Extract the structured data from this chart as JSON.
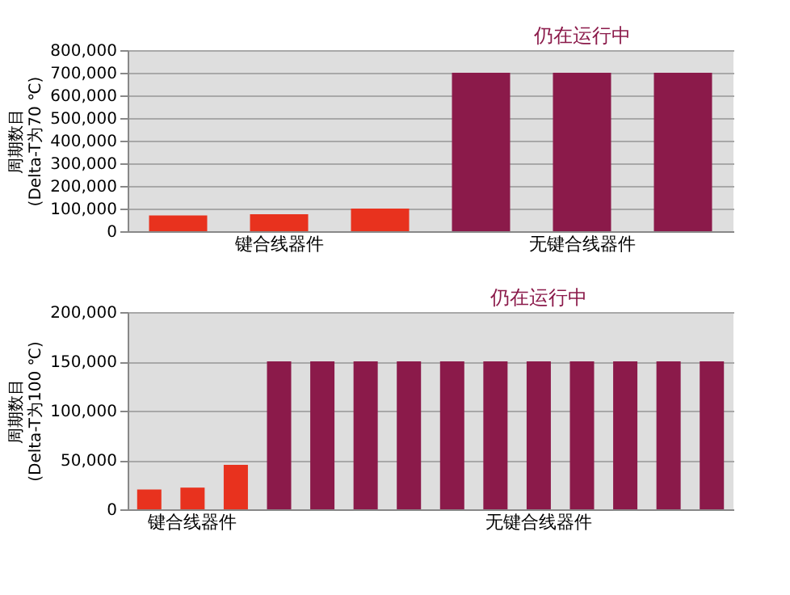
{
  "chart_data": [
    {
      "type": "bar",
      "ylabel": "周期数目\n(Delta-T为70 ℃)",
      "categories": [
        null,
        "键合线器件",
        null,
        null,
        "无键合线器件",
        null
      ],
      "values": [
        70000,
        75000,
        100000,
        700000,
        700000,
        700000
      ],
      "colors": [
        "#e8321e",
        "#e8321e",
        "#e8321e",
        "#8b1a4a",
        "#8b1a4a",
        "#8b1a4a"
      ],
      "ylim": [
        0,
        800000
      ],
      "yticks": [
        0,
        {
          "value": 100000,
          "label": "100,000"
        },
        {
          "value": 200000,
          "label": "200,000"
        },
        {
          "value": 300000,
          "label": "300,000"
        },
        {
          "value": 400000,
          "label": "400,000"
        },
        {
          "value": 500000,
          "label": "500,000"
        },
        {
          "value": 600000,
          "label": "600,000"
        },
        {
          "value": 700000,
          "label": "700,000"
        },
        {
          "value": 800000,
          "label": "800,000"
        }
      ],
      "grid": "y",
      "annotations": [
        "仍在运行中"
      ]
    },
    {
      "type": "bar",
      "ylabel": "周期数目\n(Delta-T为100 ℃)",
      "categories": [
        null,
        "键合线器件",
        null,
        null,
        null,
        null,
        null,
        null,
        null,
        "无键合线器件",
        null,
        null,
        null,
        null
      ],
      "values": [
        20000,
        22000,
        45000,
        150000,
        150000,
        150000,
        150000,
        150000,
        150000,
        150000,
        150000,
        150000,
        150000,
        150000
      ],
      "colors": [
        "#e8321e",
        "#e8321e",
        "#e8321e",
        "#8b1a4a",
        "#8b1a4a",
        "#8b1a4a",
        "#8b1a4a",
        "#8b1a4a",
        "#8b1a4a",
        "#8b1a4a",
        "#8b1a4a",
        "#8b1a4a",
        "#8b1a4a",
        "#8b1a4a"
      ],
      "ylim": [
        0,
        200000
      ],
      "yticks": [
        0,
        {
          "value": 50000,
          "label": "50,000"
        },
        {
          "value": 100000,
          "label": "100,000"
        },
        {
          "value": 150000,
          "label": "150,000"
        },
        {
          "value": 200000,
          "label": "200,000"
        }
      ],
      "grid": "y",
      "annotations": [
        "仍在运行中"
      ]
    }
  ]
}
